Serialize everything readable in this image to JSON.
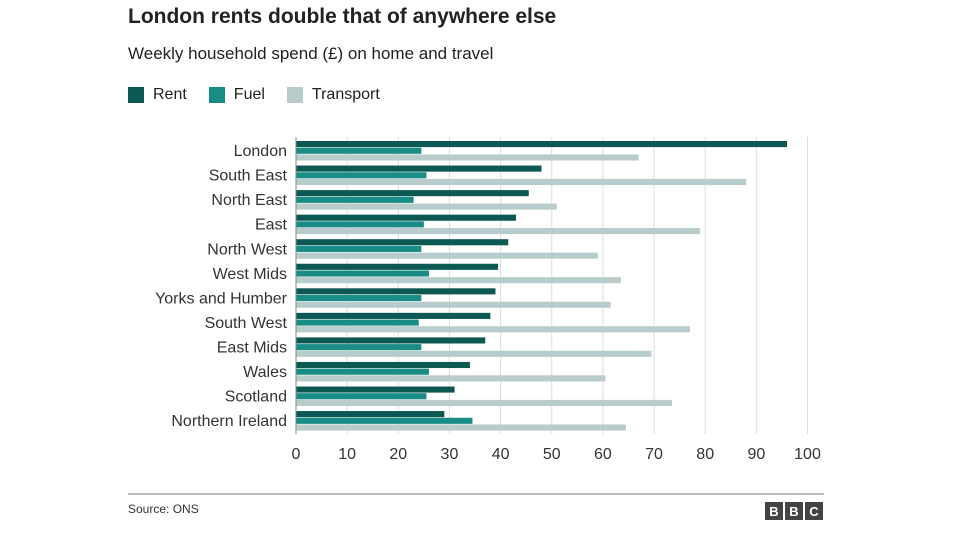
{
  "chart_data": {
    "type": "bar",
    "orientation": "horizontal",
    "title": "London rents double that of anywhere else",
    "subtitle": "Weekly household spend (£) on home and travel",
    "categories": [
      "London",
      "South East",
      "North East",
      "East",
      "North West",
      "West Mids",
      "Yorks and Humber",
      "South West",
      "East Mids",
      "Wales",
      "Scotland",
      "Northern Ireland"
    ],
    "series": [
      {
        "name": "Rent",
        "color": "#0c5853",
        "values": [
          96,
          48,
          45.5,
          43,
          41.5,
          39.5,
          39,
          38,
          37,
          34,
          31,
          29
        ]
      },
      {
        "name": "Fuel",
        "color": "#1a8c86",
        "values": [
          24.5,
          25.5,
          23,
          25,
          24.5,
          26,
          24.5,
          24,
          24.5,
          26,
          25.5,
          34.5
        ]
      },
      {
        "name": "Transport",
        "color": "#b7cccb",
        "values": [
          67,
          88,
          51,
          79,
          59,
          63.5,
          61.5,
          77,
          69.5,
          60.5,
          73.5,
          64.5
        ]
      }
    ],
    "xlim": [
      0,
      100
    ],
    "xticks": [
      0,
      10,
      20,
      30,
      40,
      50,
      60,
      70,
      80,
      90,
      100
    ],
    "xlabel": "",
    "ylabel": "",
    "grid": true,
    "legend_position": "top-left"
  },
  "footer": {
    "source": "Source: ONS",
    "logo_letters": [
      "B",
      "B",
      "C"
    ]
  }
}
